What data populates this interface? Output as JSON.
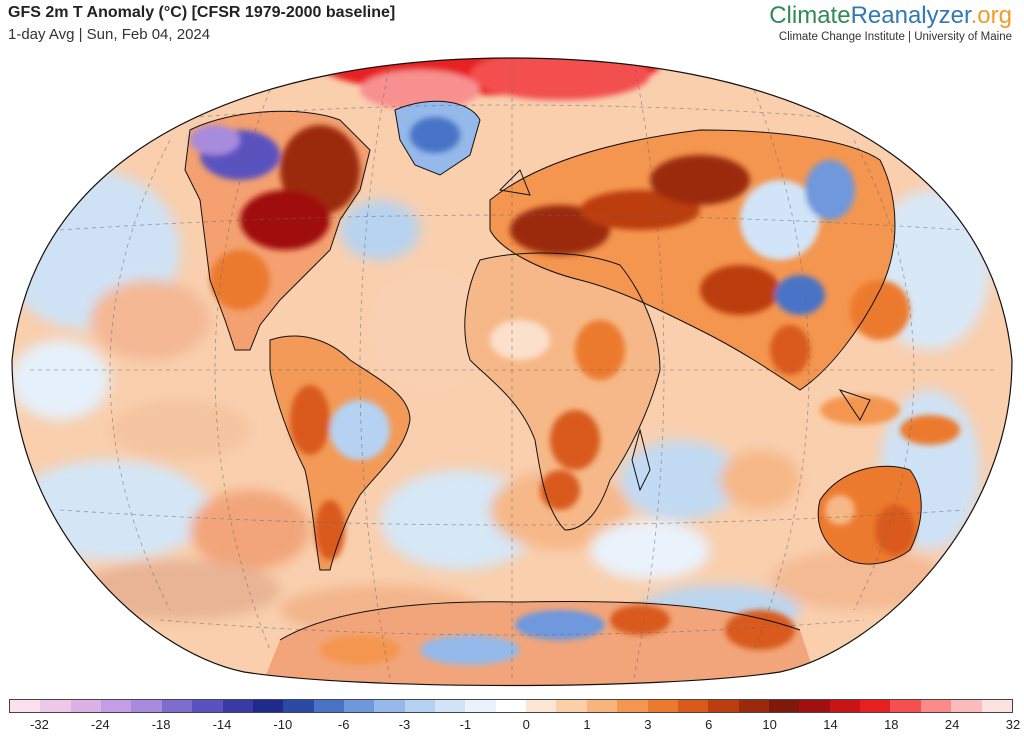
{
  "header": {
    "title": "GFS 2m T Anomaly (°C) [CFSR 1979-2000 baseline]",
    "subtitle": "1-day Avg | Sun, Feb 04, 2024"
  },
  "brand": {
    "name_part1": "Climate",
    "name_part2": "Reanalyzer",
    "name_part3": ".org",
    "subtitle": "Climate Change Institute | University of Maine"
  },
  "map": {
    "projection": "Winkel Tripel",
    "base_color": "#f7c6a0",
    "ocean_anomaly_color": "#fbd7bb"
  },
  "colorbar": {
    "colors": [
      "#fde0ef",
      "#efc8e8",
      "#dcb2e6",
      "#c49de4",
      "#a78bdd",
      "#7e6ccf",
      "#5a52bf",
      "#3a3aa6",
      "#1e2a8e",
      "#2b4aa8",
      "#4a73c6",
      "#6f98dc",
      "#94b9ea",
      "#b5d2f2",
      "#d2e4f7",
      "#eaf2fb",
      "#ffffff",
      "#fde6d4",
      "#fbcfa8",
      "#f8b47d",
      "#f4964f",
      "#ec7a2e",
      "#d95a1a",
      "#bc3e10",
      "#9b2a0c",
      "#7f1a0a",
      "#a01010",
      "#c81414",
      "#e82020",
      "#f45050",
      "#fb8a8a",
      "#fdbcbc",
      "#fde3e0"
    ],
    "tick_labels": [
      "-32",
      "-24",
      "-18",
      "-14",
      "-10",
      "-6",
      "-3",
      "-1",
      "0",
      "1",
      "3",
      "6",
      "10",
      "14",
      "18",
      "24",
      "32"
    ]
  }
}
